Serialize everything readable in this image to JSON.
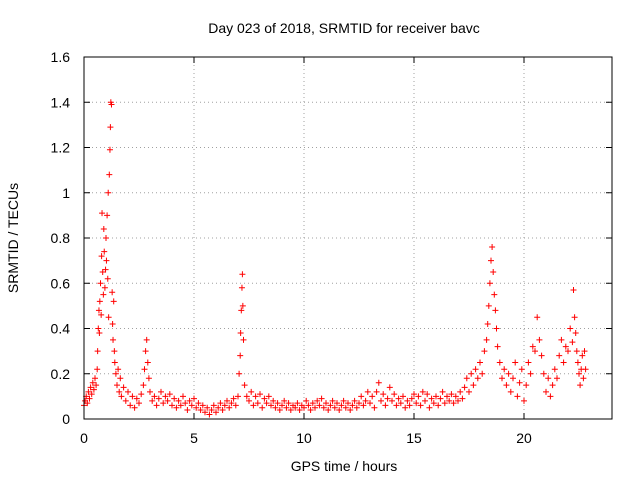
{
  "chart_data": {
    "type": "scatter",
    "title": "Day 023 of 2018, SRMTID for receiver bavc",
    "xlabel": "GPS time / hours",
    "ylabel": "SRMTID / TECUs",
    "xlim": [
      0,
      24
    ],
    "ylim": [
      0,
      1.6
    ],
    "xticks": [
      0,
      5,
      10,
      15,
      20
    ],
    "xtick_labels": [
      "0",
      "5",
      "10",
      "15",
      "20"
    ],
    "yticks": [
      0,
      0.2,
      0.4,
      0.6,
      0.8,
      1.0,
      1.2,
      1.4,
      1.6
    ],
    "ytick_labels": [
      "0",
      "0.2",
      "0.4",
      "0.6",
      "0.8",
      "1",
      "1.2",
      "1.4",
      "1.6"
    ],
    "grid": true,
    "marker": "+",
    "color": "#ff0000",
    "series": [
      {
        "name": "SRMTID",
        "points": [
          [
            0.0,
            0.06
          ],
          [
            0.05,
            0.08
          ],
          [
            0.1,
            0.1
          ],
          [
            0.15,
            0.07
          ],
          [
            0.2,
            0.12
          ],
          [
            0.25,
            0.09
          ],
          [
            0.3,
            0.14
          ],
          [
            0.35,
            0.11
          ],
          [
            0.4,
            0.16
          ],
          [
            0.45,
            0.13
          ],
          [
            0.5,
            0.18
          ],
          [
            0.55,
            0.15
          ],
          [
            0.6,
            0.22
          ],
          [
            0.62,
            0.3
          ],
          [
            0.65,
            0.4
          ],
          [
            0.68,
            0.48
          ],
          [
            0.7,
            0.38
          ],
          [
            0.72,
            0.52
          ],
          [
            0.75,
            0.6
          ],
          [
            0.78,
            0.46
          ],
          [
            0.8,
            0.72
          ],
          [
            0.82,
            0.91
          ],
          [
            0.85,
            0.65
          ],
          [
            0.88,
            0.55
          ],
          [
            0.9,
            0.84
          ],
          [
            0.92,
            0.74
          ],
          [
            0.95,
            0.58
          ],
          [
            0.98,
            0.66
          ],
          [
            1.0,
            0.8
          ],
          [
            1.02,
            0.7
          ],
          [
            1.05,
            0.9
          ],
          [
            1.08,
            0.62
          ],
          [
            1.1,
            1.0
          ],
          [
            1.12,
            0.45
          ],
          [
            1.15,
            1.08
          ],
          [
            1.18,
            1.19
          ],
          [
            1.2,
            1.29
          ],
          [
            1.22,
            1.4
          ],
          [
            1.25,
            1.39
          ],
          [
            1.28,
            0.56
          ],
          [
            1.3,
            0.42
          ],
          [
            1.32,
            0.35
          ],
          [
            1.35,
            0.52
          ],
          [
            1.38,
            0.3
          ],
          [
            1.4,
            0.25
          ],
          [
            1.45,
            0.2
          ],
          [
            1.5,
            0.15
          ],
          [
            1.55,
            0.22
          ],
          [
            1.6,
            0.12
          ],
          [
            1.65,
            0.18
          ],
          [
            1.7,
            0.1
          ],
          [
            1.8,
            0.14
          ],
          [
            1.9,
            0.08
          ],
          [
            2.0,
            0.12
          ],
          [
            2.1,
            0.06
          ],
          [
            2.2,
            0.1
          ],
          [
            2.3,
            0.05
          ],
          [
            2.4,
            0.09
          ],
          [
            2.5,
            0.07
          ],
          [
            2.6,
            0.11
          ],
          [
            2.7,
            0.15
          ],
          [
            2.75,
            0.22
          ],
          [
            2.8,
            0.3
          ],
          [
            2.85,
            0.35
          ],
          [
            2.9,
            0.25
          ],
          [
            2.95,
            0.18
          ],
          [
            3.0,
            0.12
          ],
          [
            3.1,
            0.08
          ],
          [
            3.2,
            0.1
          ],
          [
            3.3,
            0.06
          ],
          [
            3.4,
            0.09
          ],
          [
            3.5,
            0.12
          ],
          [
            3.6,
            0.07
          ],
          [
            3.7,
            0.1
          ],
          [
            3.8,
            0.08
          ],
          [
            3.9,
            0.11
          ],
          [
            4.0,
            0.06
          ],
          [
            4.1,
            0.09
          ],
          [
            4.2,
            0.05
          ],
          [
            4.3,
            0.08
          ],
          [
            4.4,
            0.06
          ],
          [
            4.5,
            0.1
          ],
          [
            4.6,
            0.07
          ],
          [
            4.7,
            0.04
          ],
          [
            4.8,
            0.08
          ],
          [
            4.9,
            0.06
          ],
          [
            5.0,
            0.09
          ],
          [
            5.1,
            0.05
          ],
          [
            5.2,
            0.07
          ],
          [
            5.3,
            0.04
          ],
          [
            5.4,
            0.06
          ],
          [
            5.5,
            0.03
          ],
          [
            5.6,
            0.05
          ],
          [
            5.7,
            0.02
          ],
          [
            5.8,
            0.04
          ],
          [
            5.9,
            0.06
          ],
          [
            6.0,
            0.03
          ],
          [
            6.1,
            0.05
          ],
          [
            6.2,
            0.07
          ],
          [
            6.3,
            0.04
          ],
          [
            6.4,
            0.06
          ],
          [
            6.5,
            0.08
          ],
          [
            6.6,
            0.05
          ],
          [
            6.7,
            0.07
          ],
          [
            6.8,
            0.09
          ],
          [
            6.9,
            0.06
          ],
          [
            7.0,
            0.1
          ],
          [
            7.05,
            0.2
          ],
          [
            7.1,
            0.28
          ],
          [
            7.12,
            0.38
          ],
          [
            7.15,
            0.48
          ],
          [
            7.18,
            0.58
          ],
          [
            7.2,
            0.64
          ],
          [
            7.22,
            0.5
          ],
          [
            7.25,
            0.35
          ],
          [
            7.3,
            0.15
          ],
          [
            7.4,
            0.1
          ],
          [
            7.5,
            0.08
          ],
          [
            7.6,
            0.12
          ],
          [
            7.7,
            0.06
          ],
          [
            7.8,
            0.1
          ],
          [
            7.9,
            0.07
          ],
          [
            8.0,
            0.11
          ],
          [
            8.1,
            0.05
          ],
          [
            8.2,
            0.09
          ],
          [
            8.3,
            0.07
          ],
          [
            8.4,
            0.1
          ],
          [
            8.5,
            0.06
          ],
          [
            8.6,
            0.08
          ],
          [
            8.7,
            0.05
          ],
          [
            8.8,
            0.07
          ],
          [
            8.9,
            0.04
          ],
          [
            9.0,
            0.06
          ],
          [
            9.1,
            0.08
          ],
          [
            9.2,
            0.05
          ],
          [
            9.3,
            0.07
          ],
          [
            9.4,
            0.04
          ],
          [
            9.5,
            0.06
          ],
          [
            9.6,
            0.05
          ],
          [
            9.7,
            0.07
          ],
          [
            9.8,
            0.04
          ],
          [
            9.9,
            0.06
          ],
          [
            10.0,
            0.05
          ],
          [
            10.1,
            0.08
          ],
          [
            10.2,
            0.06
          ],
          [
            10.3,
            0.04
          ],
          [
            10.4,
            0.07
          ],
          [
            10.5,
            0.05
          ],
          [
            10.6,
            0.08
          ],
          [
            10.7,
            0.06
          ],
          [
            10.8,
            0.09
          ],
          [
            10.9,
            0.05
          ],
          [
            11.0,
            0.07
          ],
          [
            11.1,
            0.04
          ],
          [
            11.2,
            0.06
          ],
          [
            11.3,
            0.08
          ],
          [
            11.4,
            0.05
          ],
          [
            11.5,
            0.07
          ],
          [
            11.6,
            0.04
          ],
          [
            11.7,
            0.06
          ],
          [
            11.8,
            0.08
          ],
          [
            11.9,
            0.05
          ],
          [
            12.0,
            0.07
          ],
          [
            12.1,
            0.04
          ],
          [
            12.2,
            0.06
          ],
          [
            12.3,
            0.08
          ],
          [
            12.4,
            0.05
          ],
          [
            12.5,
            0.07
          ],
          [
            12.6,
            0.1
          ],
          [
            12.7,
            0.06
          ],
          [
            12.8,
            0.08
          ],
          [
            12.9,
            0.12
          ],
          [
            13.0,
            0.07
          ],
          [
            13.1,
            0.1
          ],
          [
            13.2,
            0.05
          ],
          [
            13.3,
            0.12
          ],
          [
            13.4,
            0.16
          ],
          [
            13.5,
            0.08
          ],
          [
            13.6,
            0.11
          ],
          [
            13.7,
            0.06
          ],
          [
            13.8,
            0.09
          ],
          [
            13.9,
            0.14
          ],
          [
            14.0,
            0.08
          ],
          [
            14.1,
            0.11
          ],
          [
            14.2,
            0.06
          ],
          [
            14.3,
            0.09
          ],
          [
            14.4,
            0.07
          ],
          [
            14.5,
            0.1
          ],
          [
            14.6,
            0.05
          ],
          [
            14.7,
            0.08
          ],
          [
            14.8,
            0.06
          ],
          [
            14.9,
            0.09
          ],
          [
            15.0,
            0.11
          ],
          [
            15.1,
            0.07
          ],
          [
            15.2,
            0.1
          ],
          [
            15.3,
            0.06
          ],
          [
            15.4,
            0.12
          ],
          [
            15.5,
            0.08
          ],
          [
            15.6,
            0.11
          ],
          [
            15.7,
            0.05
          ],
          [
            15.8,
            0.09
          ],
          [
            15.9,
            0.07
          ],
          [
            16.0,
            0.1
          ],
          [
            16.1,
            0.06
          ],
          [
            16.2,
            0.09
          ],
          [
            16.3,
            0.12
          ],
          [
            16.4,
            0.07
          ],
          [
            16.5,
            0.1
          ],
          [
            16.6,
            0.08
          ],
          [
            16.7,
            0.11
          ],
          [
            16.8,
            0.07
          ],
          [
            16.9,
            0.1
          ],
          [
            17.0,
            0.08
          ],
          [
            17.1,
            0.12
          ],
          [
            17.2,
            0.09
          ],
          [
            17.3,
            0.14
          ],
          [
            17.4,
            0.18
          ],
          [
            17.5,
            0.12
          ],
          [
            17.6,
            0.2
          ],
          [
            17.7,
            0.15
          ],
          [
            17.8,
            0.22
          ],
          [
            17.9,
            0.18
          ],
          [
            18.0,
            0.25
          ],
          [
            18.1,
            0.2
          ],
          [
            18.2,
            0.3
          ],
          [
            18.3,
            0.35
          ],
          [
            18.35,
            0.42
          ],
          [
            18.4,
            0.5
          ],
          [
            18.45,
            0.6
          ],
          [
            18.5,
            0.7
          ],
          [
            18.55,
            0.76
          ],
          [
            18.6,
            0.65
          ],
          [
            18.65,
            0.55
          ],
          [
            18.7,
            0.48
          ],
          [
            18.75,
            0.4
          ],
          [
            18.8,
            0.32
          ],
          [
            18.9,
            0.25
          ],
          [
            19.0,
            0.18
          ],
          [
            19.1,
            0.22
          ],
          [
            19.2,
            0.15
          ],
          [
            19.3,
            0.2
          ],
          [
            19.4,
            0.12
          ],
          [
            19.5,
            0.18
          ],
          [
            19.6,
            0.25
          ],
          [
            19.7,
            0.1
          ],
          [
            19.8,
            0.16
          ],
          [
            19.9,
            0.22
          ],
          [
            20.0,
            0.08
          ],
          [
            20.1,
            0.15
          ],
          [
            20.2,
            0.25
          ],
          [
            20.3,
            0.2
          ],
          [
            20.4,
            0.32
          ],
          [
            20.5,
            0.3
          ],
          [
            20.6,
            0.45
          ],
          [
            20.7,
            0.35
          ],
          [
            20.8,
            0.28
          ],
          [
            20.9,
            0.2
          ],
          [
            21.0,
            0.12
          ],
          [
            21.1,
            0.18
          ],
          [
            21.2,
            0.1
          ],
          [
            21.3,
            0.15
          ],
          [
            21.4,
            0.22
          ],
          [
            21.5,
            0.18
          ],
          [
            21.6,
            0.28
          ],
          [
            21.7,
            0.35
          ],
          [
            21.8,
            0.25
          ],
          [
            21.9,
            0.32
          ],
          [
            22.0,
            0.3
          ],
          [
            22.1,
            0.4
          ],
          [
            22.2,
            0.34
          ],
          [
            22.25,
            0.57
          ],
          [
            22.3,
            0.45
          ],
          [
            22.35,
            0.38
          ],
          [
            22.4,
            0.3
          ],
          [
            22.45,
            0.25
          ],
          [
            22.5,
            0.2
          ],
          [
            22.55,
            0.15
          ],
          [
            22.6,
            0.22
          ],
          [
            22.65,
            0.28
          ],
          [
            22.7,
            0.18
          ],
          [
            22.75,
            0.3
          ],
          [
            22.8,
            0.22
          ]
        ]
      }
    ]
  }
}
